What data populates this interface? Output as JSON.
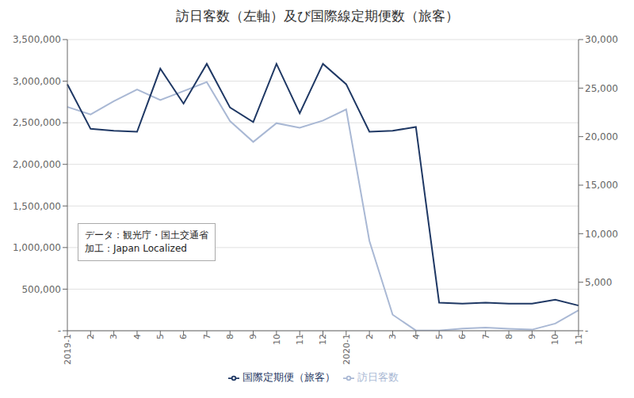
{
  "chart_data": {
    "type": "line",
    "title": "訪日客数（左軸）及び国際線定期便数（旅客）",
    "categories": [
      "2019-1",
      "2",
      "3",
      "4",
      "5",
      "6",
      "7",
      "8",
      "9",
      "10",
      "11",
      "12",
      "2020-1",
      "2",
      "3",
      "4",
      "5",
      "6",
      "7",
      "8",
      "9",
      "10",
      "11"
    ],
    "series": [
      {
        "name": "訪日客数",
        "color": "#a9b8d4",
        "axis": "y",
        "values": [
          2690000,
          2600000,
          2760000,
          2900000,
          2773000,
          2880000,
          2990000,
          2520000,
          2270000,
          2495000,
          2440000,
          2526000,
          2660000,
          1080000,
          193000,
          2900,
          3400,
          25000,
          38900,
          24600,
          13200,
          86800,
          245900
        ]
      },
      {
        "name": "国際定期便（旅客）",
        "color": "#1f3864",
        "axis": "y2",
        "values": [
          25400,
          20800,
          20600,
          20500,
          27000,
          23400,
          27500,
          23000,
          21500,
          27500,
          22400,
          27500,
          25400,
          20500,
          20600,
          21000,
          2900,
          2800,
          2900,
          2800,
          2800,
          3200,
          2600
        ]
      }
    ],
    "ylim": [
      0,
      3500000
    ],
    "yticks": [
      {
        "value": 0,
        "label": "-"
      },
      {
        "value": 500000,
        "label": "500,000"
      },
      {
        "value": 1000000,
        "label": "1,000,000"
      },
      {
        "value": 1500000,
        "label": "1,500,000"
      },
      {
        "value": 2000000,
        "label": "2,000,000"
      },
      {
        "value": 2500000,
        "label": "2,500,000"
      },
      {
        "value": 3000000,
        "label": "3,000,000"
      },
      {
        "value": 3500000,
        "label": "3,500,000"
      }
    ],
    "y2lim": [
      0,
      30000
    ],
    "y2ticks": [
      {
        "value": 0,
        "label": "-"
      },
      {
        "value": 5000,
        "label": "5,000"
      },
      {
        "value": 10000,
        "label": "10,000"
      },
      {
        "value": 15000,
        "label": "15,000"
      },
      {
        "value": 20000,
        "label": "20,000"
      },
      {
        "value": 25000,
        "label": "25,000"
      },
      {
        "value": 30000,
        "label": "30,000"
      }
    ],
    "grid": true,
    "legend": "bottom",
    "annotations": [
      "データ：観光庁・国土交通省",
      "加工：Japan Localized"
    ]
  }
}
